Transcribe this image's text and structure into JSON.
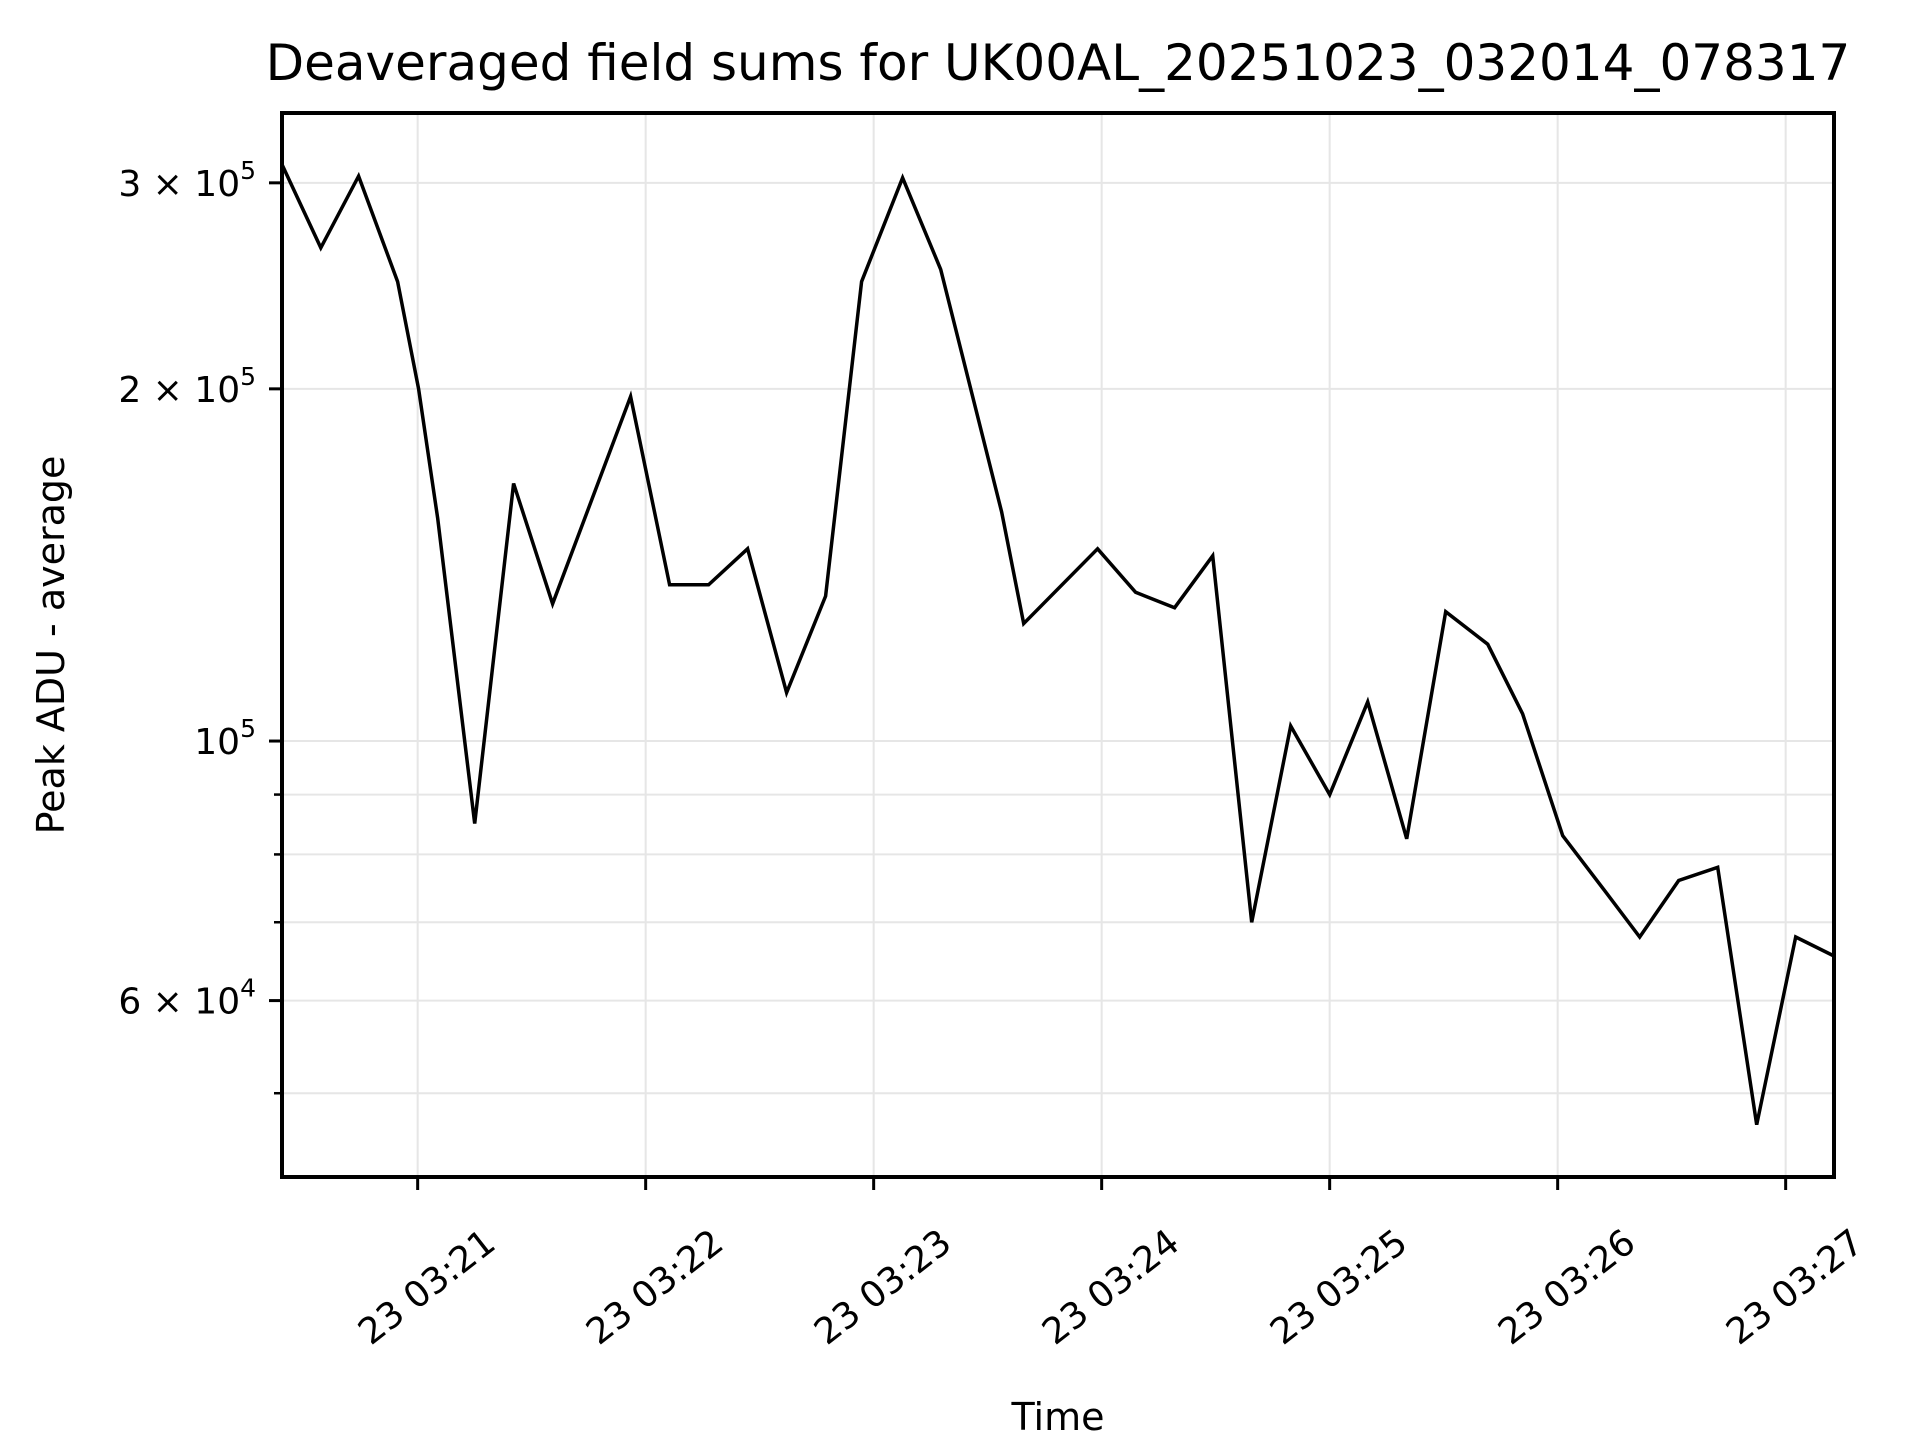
{
  "figure": {
    "title": "Deaveraged field sums for UK00AL_20251023_032014_078317",
    "xlabel": "Time",
    "ylabel": "Peak ADU - average"
  },
  "chart_data": {
    "type": "line",
    "title": "Deaveraged field sums for UK00AL_20251023_032014_078317",
    "xlabel": "Time",
    "ylabel": "Peak ADU - average",
    "yscale": "log",
    "grid": true,
    "legend": "none",
    "line_color": "#000000",
    "grid_color": "#e6e6e6",
    "spine_color": "#000000",
    "x_unit": "day 23, minutes after 03:00 UT",
    "xlim_minutes": [
      20.405,
      27.212
    ],
    "ylim": [
      42400,
      344200
    ],
    "x_ticks": [
      {
        "m": 21,
        "label": "23 03:21"
      },
      {
        "m": 22,
        "label": "23 03:22"
      },
      {
        "m": 23,
        "label": "23 03:23"
      },
      {
        "m": 24,
        "label": "23 03:24"
      },
      {
        "m": 25,
        "label": "23 03:25"
      },
      {
        "m": 26,
        "label": "23 03:26"
      },
      {
        "m": 27,
        "label": "23 03:27"
      }
    ],
    "y_ticks_labeled": [
      {
        "v": 300000,
        "coef": "3 × 10",
        "exp": "5"
      },
      {
        "v": 200000,
        "coef": "2 × 10",
        "exp": "5"
      },
      {
        "v": 100000,
        "coef": "10",
        "exp": "5"
      },
      {
        "v": 60000,
        "coef": "6 × 10",
        "exp": "4"
      }
    ],
    "y_ticks_unlabeled": [
      90000,
      80000,
      70000,
      50000
    ],
    "series": [
      {
        "name": "peak_adu_average",
        "points": [
          [
            20.405,
            311000
          ],
          [
            20.575,
            264000
          ],
          [
            20.741,
            304000
          ],
          [
            20.912,
            247000
          ],
          [
            21.004,
            200000
          ],
          [
            21.088,
            155000
          ],
          [
            21.25,
            85000
          ],
          [
            21.421,
            166000
          ],
          [
            21.592,
            131000
          ],
          [
            21.934,
            197000
          ],
          [
            22.105,
            136000
          ],
          [
            22.276,
            136000
          ],
          [
            22.447,
            146000
          ],
          [
            22.618,
            110000
          ],
          [
            22.789,
            133000
          ],
          [
            22.947,
            247000
          ],
          [
            23.127,
            303000
          ],
          [
            23.294,
            253000
          ],
          [
            23.561,
            157000
          ],
          [
            23.658,
            126000
          ],
          [
            23.982,
            146000
          ],
          [
            24.149,
            134000
          ],
          [
            24.32,
            130000
          ],
          [
            24.487,
            144000
          ],
          [
            24.658,
            70000
          ],
          [
            24.829,
            103000
          ],
          [
            25.0,
            90000
          ],
          [
            25.167,
            108000
          ],
          [
            25.338,
            82500
          ],
          [
            25.509,
            129000
          ],
          [
            25.693,
            121000
          ],
          [
            25.846,
            105500
          ],
          [
            26.022,
            83000
          ],
          [
            26.206,
            74500
          ],
          [
            26.36,
            68000
          ],
          [
            26.531,
            76000
          ],
          [
            26.702,
            78000
          ],
          [
            26.873,
            47000
          ],
          [
            27.044,
            68000
          ],
          [
            27.212,
            65500
          ]
        ]
      }
    ]
  }
}
